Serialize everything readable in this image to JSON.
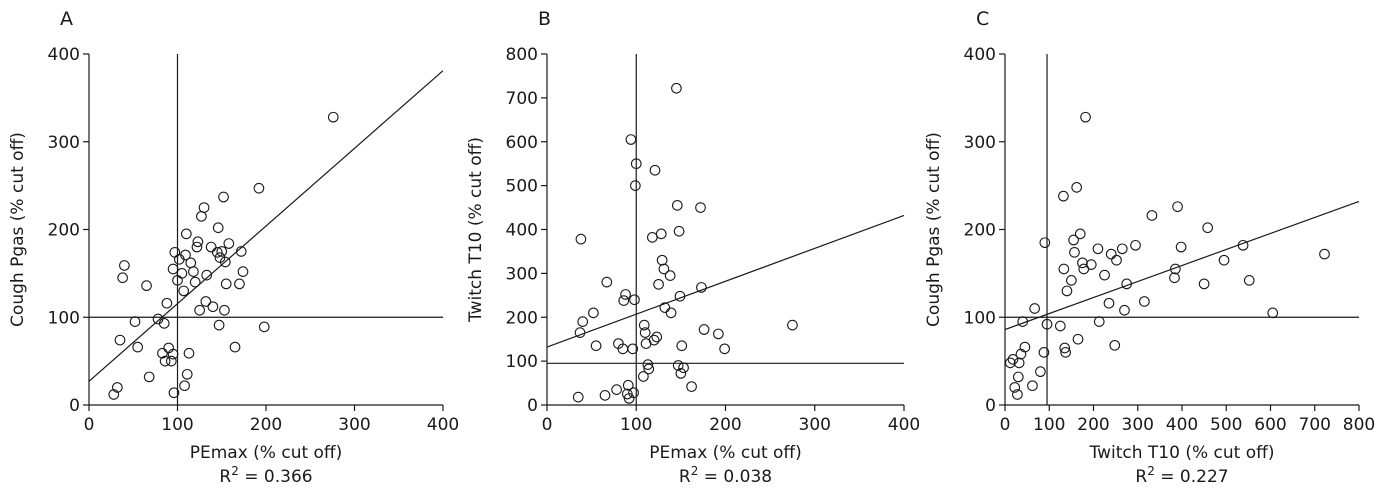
{
  "chart_data": [
    {
      "panel": "A",
      "type": "scatter",
      "xlabel": "PEmax (% cut off)",
      "ylabel": "Cough Pgas (% cut off)",
      "r2_prefix": "R",
      "r2_sup": "2",
      "r2_value": " = 0.366",
      "xlim": [
        0,
        400
      ],
      "ylim": [
        0,
        400
      ],
      "xticks": [
        0,
        100,
        200,
        300,
        400
      ],
      "yticks": [
        0,
        100,
        200,
        300,
        400
      ],
      "ref_x": 100,
      "ref_y": 100,
      "fit": {
        "x0": 0,
        "y0": 27,
        "x1": 400,
        "y1": 381
      },
      "points": [
        [
          28,
          12
        ],
        [
          32,
          20
        ],
        [
          35,
          74
        ],
        [
          38,
          145
        ],
        [
          40,
          159
        ],
        [
          52,
          95
        ],
        [
          55,
          66
        ],
        [
          65,
          136
        ],
        [
          68,
          32
        ],
        [
          78,
          98
        ],
        [
          83,
          59
        ],
        [
          85,
          93
        ],
        [
          86,
          50
        ],
        [
          88,
          116
        ],
        [
          90,
          65
        ],
        [
          93,
          50
        ],
        [
          95,
          58
        ],
        [
          95,
          155
        ],
        [
          96,
          14
        ],
        [
          97,
          174
        ],
        [
          100,
          142
        ],
        [
          102,
          166
        ],
        [
          105,
          150
        ],
        [
          107,
          130
        ],
        [
          108,
          22
        ],
        [
          109,
          171
        ],
        [
          110,
          195
        ],
        [
          111,
          35
        ],
        [
          113,
          59
        ],
        [
          115,
          162
        ],
        [
          118,
          152
        ],
        [
          120,
          140
        ],
        [
          122,
          180
        ],
        [
          123,
          186
        ],
        [
          125,
          108
        ],
        [
          127,
          215
        ],
        [
          130,
          225
        ],
        [
          132,
          118
        ],
        [
          133,
          148
        ],
        [
          138,
          180
        ],
        [
          140,
          112
        ],
        [
          145,
          174
        ],
        [
          146,
          202
        ],
        [
          147,
          91
        ],
        [
          148,
          168
        ],
        [
          150,
          175
        ],
        [
          152,
          237
        ],
        [
          153,
          108
        ],
        [
          154,
          163
        ],
        [
          155,
          138
        ],
        [
          158,
          184
        ],
        [
          165,
          66
        ],
        [
          170,
          138
        ],
        [
          172,
          175
        ],
        [
          174,
          152
        ],
        [
          192,
          247
        ],
        [
          198,
          89
        ],
        [
          276,
          328
        ]
      ]
    },
    {
      "panel": "B",
      "type": "scatter",
      "xlabel": "PEmax (% cut off)",
      "ylabel": "Twitch T10 (% cut off)",
      "r2_prefix": "R",
      "r2_sup": "2",
      "r2_value": " = 0.038",
      "xlim": [
        0,
        400
      ],
      "ylim": [
        0,
        800
      ],
      "xticks": [
        0,
        100,
        200,
        300,
        400
      ],
      "yticks": [
        0,
        100,
        200,
        300,
        400,
        500,
        600,
        700,
        800
      ],
      "ref_x": 100,
      "ref_y": 95,
      "fit": {
        "x0": 0,
        "y0": 132,
        "x1": 400,
        "y1": 432
      },
      "points": [
        [
          35,
          18
        ],
        [
          37,
          165
        ],
        [
          38,
          378
        ],
        [
          40,
          190
        ],
        [
          52,
          210
        ],
        [
          55,
          135
        ],
        [
          65,
          22
        ],
        [
          67,
          280
        ],
        [
          78,
          35
        ],
        [
          80,
          140
        ],
        [
          85,
          128
        ],
        [
          86,
          238
        ],
        [
          88,
          252
        ],
        [
          90,
          25
        ],
        [
          91,
          45
        ],
        [
          92,
          15
        ],
        [
          94,
          605
        ],
        [
          96,
          128
        ],
        [
          97,
          28
        ],
        [
          98,
          240
        ],
        [
          99,
          500
        ],
        [
          100,
          550
        ],
        [
          108,
          65
        ],
        [
          109,
          182
        ],
        [
          110,
          165
        ],
        [
          111,
          140
        ],
        [
          113,
          92
        ],
        [
          114,
          82
        ],
        [
          118,
          382
        ],
        [
          120,
          148
        ],
        [
          121,
          535
        ],
        [
          123,
          155
        ],
        [
          125,
          275
        ],
        [
          128,
          390
        ],
        [
          129,
          330
        ],
        [
          131,
          310
        ],
        [
          132,
          222
        ],
        [
          138,
          295
        ],
        [
          139,
          210
        ],
        [
          145,
          722
        ],
        [
          146,
          455
        ],
        [
          147,
          90
        ],
        [
          148,
          396
        ],
        [
          149,
          248
        ],
        [
          150,
          72
        ],
        [
          151,
          135
        ],
        [
          153,
          85
        ],
        [
          162,
          42
        ],
        [
          172,
          450
        ],
        [
          173,
          268
        ],
        [
          176,
          172
        ],
        [
          192,
          162
        ],
        [
          199,
          128
        ],
        [
          275,
          182
        ]
      ]
    },
    {
      "panel": "C",
      "type": "scatter",
      "xlabel": "Twitch T10 (% cut off)",
      "ylabel": "Cough Pgas (% cut off)",
      "r2_prefix": "R",
      "r2_sup": "2",
      "r2_value": " = 0.227",
      "xlim": [
        0,
        800
      ],
      "ylim": [
        0,
        400
      ],
      "xticks": [
        0,
        100,
        200,
        300,
        400,
        500,
        600,
        700,
        800
      ],
      "yticks": [
        0,
        100,
        200,
        300,
        400
      ],
      "ref_x": 95,
      "ref_y": 100,
      "fit": {
        "x0": 0,
        "y0": 86,
        "x1": 800,
        "y1": 232
      },
      "points": [
        [
          12,
          48
        ],
        [
          18,
          52
        ],
        [
          22,
          20
        ],
        [
          28,
          12
        ],
        [
          30,
          32
        ],
        [
          32,
          48
        ],
        [
          36,
          58
        ],
        [
          40,
          95
        ],
        [
          45,
          66
        ],
        [
          62,
          22
        ],
        [
          67,
          110
        ],
        [
          80,
          38
        ],
        [
          88,
          60
        ],
        [
          90,
          185
        ],
        [
          95,
          92
        ],
        [
          125,
          90
        ],
        [
          132,
          238
        ],
        [
          133,
          155
        ],
        [
          135,
          65
        ],
        [
          137,
          60
        ],
        [
          140,
          130
        ],
        [
          150,
          142
        ],
        [
          155,
          188
        ],
        [
          157,
          174
        ],
        [
          162,
          248
        ],
        [
          165,
          75
        ],
        [
          170,
          195
        ],
        [
          175,
          162
        ],
        [
          178,
          155
        ],
        [
          182,
          328
        ],
        [
          195,
          160
        ],
        [
          210,
          178
        ],
        [
          213,
          95
        ],
        [
          225,
          148
        ],
        [
          235,
          116
        ],
        [
          240,
          172
        ],
        [
          248,
          68
        ],
        [
          252,
          165
        ],
        [
          265,
          178
        ],
        [
          270,
          108
        ],
        [
          275,
          138
        ],
        [
          295,
          182
        ],
        [
          315,
          118
        ],
        [
          332,
          216
        ],
        [
          383,
          145
        ],
        [
          385,
          155
        ],
        [
          390,
          226
        ],
        [
          398,
          180
        ],
        [
          450,
          138
        ],
        [
          458,
          202
        ],
        [
          495,
          165
        ],
        [
          538,
          182
        ],
        [
          552,
          142
        ],
        [
          605,
          105
        ],
        [
          722,
          172
        ]
      ]
    }
  ]
}
